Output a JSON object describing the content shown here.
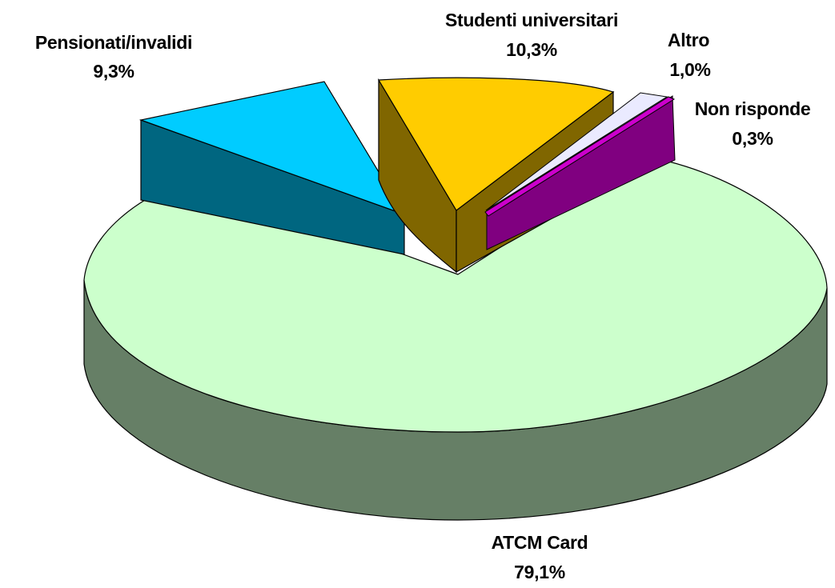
{
  "chart_data": {
    "type": "pie",
    "style": "3d-exploded",
    "slices": [
      {
        "label": "ATCM Card",
        "value_label": "79,1%",
        "value": 79.1,
        "top_color": "#ccffcc",
        "side_color": "#667f66"
      },
      {
        "label": "Pensionati/invalidi",
        "value_label": "9,3%",
        "value": 9.3,
        "top_color": "#00ccff",
        "side_color": "#006680"
      },
      {
        "label": "Studenti universitari",
        "value_label": "10,3%",
        "value": 10.3,
        "top_color": "#ffcc00",
        "side_color": "#806600"
      },
      {
        "label": "Altro",
        "value_label": "1,0%",
        "value": 1.0,
        "top_color": "#eaeaff",
        "side_color": "#7a7a90"
      },
      {
        "label": "Non risponde",
        "value_label": "0,3%",
        "value": 0.3,
        "top_color": "#cc00cc",
        "side_color": "#800080"
      }
    ]
  }
}
